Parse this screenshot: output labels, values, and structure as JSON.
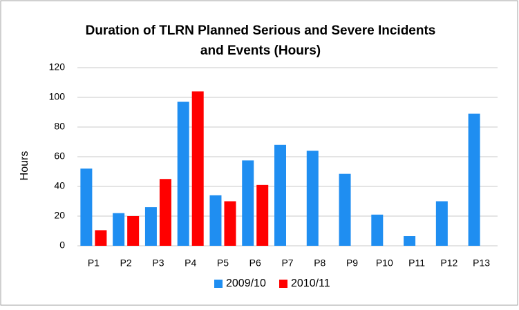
{
  "chart_data": {
    "type": "bar",
    "title": [
      "Duration of TLRN Planned Serious and Severe Incidents",
      "and Events (Hours)"
    ],
    "y_label": "Hours",
    "categories": [
      "P1",
      "P2",
      "P3",
      "P4",
      "P5",
      "P6",
      "P7",
      "P8",
      "P9",
      "P10",
      "P11",
      "P12",
      "P13"
    ],
    "series": [
      {
        "name": "2009/10",
        "color": "#1f8ef1",
        "values": [
          52,
          22,
          26,
          97,
          34,
          57.5,
          68,
          64,
          48.5,
          21,
          6.5,
          30,
          89
        ]
      },
      {
        "name": "2010/11",
        "color": "#ff0000",
        "values": [
          10.5,
          20,
          45,
          104,
          30,
          41,
          null,
          null,
          null,
          null,
          null,
          null,
          null
        ]
      }
    ],
    "ylim": [
      0,
      120
    ],
    "yticks": [
      0,
      20,
      40,
      60,
      80,
      100,
      120
    ],
    "grid": true,
    "legend": "bottom"
  }
}
